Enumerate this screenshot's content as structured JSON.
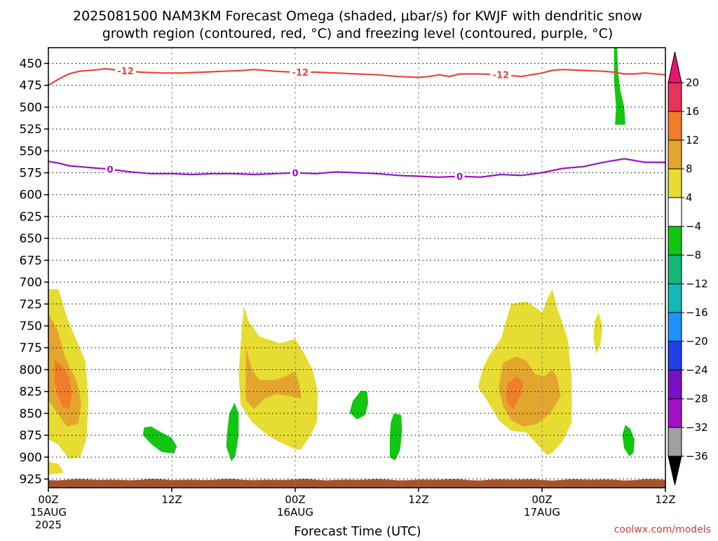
{
  "chart_data": {
    "type": "contour",
    "title_line1": "2025081500 NAM3KM Forecast Omega (shaded, μbar/s) for KWJF with dendritic snow",
    "title_line2": "growth region (contoured, red, °C) and freezing level (contoured, purple, °C)",
    "xlabel": "Forecast Time (UTC)",
    "credit": "coolwx.com/models",
    "x_ticks": [
      {
        "hour": 0,
        "label": "00Z",
        "sub1": "15AUG",
        "sub2": "2025"
      },
      {
        "hour": 12,
        "label": "12Z",
        "sub1": "",
        "sub2": ""
      },
      {
        "hour": 24,
        "label": "00Z",
        "sub1": "16AUG",
        "sub2": ""
      },
      {
        "hour": 36,
        "label": "12Z",
        "sub1": "",
        "sub2": ""
      },
      {
        "hour": 48,
        "label": "00Z",
        "sub1": "17AUG",
        "sub2": ""
      },
      {
        "hour": 60,
        "label": "12Z",
        "sub1": "",
        "sub2": ""
      }
    ],
    "xlim_hours": [
      0,
      60
    ],
    "y_axis": "pressure (hPa)",
    "y_ticks": [
      450,
      475,
      500,
      525,
      550,
      575,
      600,
      625,
      650,
      675,
      700,
      725,
      750,
      775,
      800,
      825,
      850,
      875,
      900,
      925
    ],
    "ylim_hpa": [
      432,
      935
    ],
    "grid": true,
    "colorbar": {
      "labels": [
        "20",
        "16",
        "12",
        "8",
        "4",
        "−4",
        "−8",
        "−12",
        "−16",
        "−20",
        "−24",
        "−28",
        "−32",
        "−36"
      ],
      "colors": [
        "#e8325a",
        "#f07d2a",
        "#e3a52e",
        "#e6dc32",
        "#ffffff",
        "#11c711",
        "#14b878",
        "#13b8b8",
        "#1e90ff",
        "#2040e8",
        "#7a10c8",
        "#a010c8",
        "#a0a0a0"
      ],
      "top_cap": "#e8146e",
      "bottom_cap": "#000000"
    },
    "contours": [
      {
        "name": "dendritic snow growth region",
        "value_label": "-12",
        "color": "#e8463c",
        "points": [
          [
            0,
            475
          ],
          [
            1,
            468
          ],
          [
            2,
            462
          ],
          [
            3,
            459
          ],
          [
            5,
            457
          ],
          [
            5.5,
            456
          ],
          [
            7,
            458
          ],
          [
            9,
            460
          ],
          [
            11,
            461
          ],
          [
            13,
            461
          ],
          [
            15,
            460
          ],
          [
            17,
            459
          ],
          [
            19,
            458
          ],
          [
            20,
            457
          ],
          [
            22,
            459
          ],
          [
            24,
            460
          ],
          [
            26,
            460
          ],
          [
            28,
            461
          ],
          [
            30,
            462
          ],
          [
            32,
            463
          ],
          [
            34,
            465
          ],
          [
            36,
            466
          ],
          [
            37,
            465
          ],
          [
            38,
            463
          ],
          [
            39,
            465
          ],
          [
            40,
            462
          ],
          [
            42,
            462
          ],
          [
            44,
            463
          ],
          [
            46,
            465
          ],
          [
            48,
            461
          ],
          [
            49,
            458
          ],
          [
            50,
            457
          ],
          [
            52,
            458
          ],
          [
            54,
            459
          ],
          [
            55,
            460
          ],
          [
            56,
            462
          ],
          [
            57,
            462
          ],
          [
            58,
            461
          ],
          [
            60,
            463
          ]
        ],
        "label_hours": [
          7.5,
          24.5,
          44
        ]
      },
      {
        "name": "freezing level",
        "value_label": "0",
        "color": "#9a10c8",
        "points": [
          [
            0,
            562
          ],
          [
            1,
            564
          ],
          [
            2,
            567
          ],
          [
            3,
            568
          ],
          [
            5,
            570
          ],
          [
            6,
            571
          ],
          [
            8,
            574
          ],
          [
            10,
            576
          ],
          [
            12,
            576
          ],
          [
            14,
            577
          ],
          [
            16,
            576
          ],
          [
            18,
            576
          ],
          [
            20,
            577
          ],
          [
            22,
            576
          ],
          [
            24,
            575
          ],
          [
            26,
            576
          ],
          [
            28,
            574
          ],
          [
            30,
            575
          ],
          [
            32,
            576
          ],
          [
            34,
            578
          ],
          [
            36,
            579
          ],
          [
            38,
            580
          ],
          [
            40,
            579
          ],
          [
            42,
            580
          ],
          [
            44,
            577
          ],
          [
            46,
            578
          ],
          [
            48,
            575
          ],
          [
            50,
            570
          ],
          [
            52,
            568
          ],
          [
            54,
            563
          ],
          [
            55,
            561
          ],
          [
            56,
            559
          ],
          [
            57,
            561
          ],
          [
            58,
            563
          ],
          [
            60,
            563
          ]
        ],
        "label_hours": [
          6,
          24,
          40
        ]
      }
    ],
    "omega_regions": [
      {
        "value": "4 to 8",
        "color": "#e6dc32",
        "points": [
          [
            0,
            708
          ],
          [
            1,
            708
          ],
          [
            1.8,
            740
          ],
          [
            2.5,
            760
          ],
          [
            3.6,
            790
          ],
          [
            3.9,
            835
          ],
          [
            3.7,
            880
          ],
          [
            3.1,
            900
          ],
          [
            2,
            902
          ],
          [
            0.9,
            885
          ],
          [
            0,
            880
          ]
        ]
      },
      {
        "value": "4 to 8",
        "color": "#e6dc32",
        "points": [
          [
            0,
            905
          ],
          [
            1,
            908
          ],
          [
            1.5,
            918
          ],
          [
            0,
            920
          ]
        ]
      },
      {
        "value": "8 to 12",
        "color": "#e3a52e",
        "points": [
          [
            0,
            736
          ],
          [
            0.9,
            755
          ],
          [
            1.6,
            785
          ],
          [
            2.8,
            815
          ],
          [
            3.2,
            838
          ],
          [
            2.9,
            862
          ],
          [
            1.8,
            865
          ],
          [
            0.9,
            850
          ],
          [
            0,
            835
          ]
        ]
      },
      {
        "value": "12 to 16",
        "color": "#f07d2a",
        "points": [
          [
            0.6,
            790
          ],
          [
            1.3,
            795
          ],
          [
            2,
            808
          ],
          [
            2.3,
            828
          ],
          [
            2,
            845
          ],
          [
            1.4,
            843
          ],
          [
            0.9,
            830
          ],
          [
            0.6,
            812
          ]
        ]
      },
      {
        "value": "4 to 8",
        "color": "#e6dc32",
        "points": [
          [
            19,
            727
          ],
          [
            19.5,
            745
          ],
          [
            20.5,
            762
          ],
          [
            22.5,
            770
          ],
          [
            24,
            765
          ],
          [
            24.8,
            780
          ],
          [
            25.7,
            800
          ],
          [
            26.2,
            825
          ],
          [
            26.1,
            860
          ],
          [
            25.5,
            875
          ],
          [
            24.5,
            892
          ],
          [
            23.8,
            890
          ],
          [
            22,
            880
          ],
          [
            21,
            872
          ],
          [
            19.8,
            860
          ],
          [
            18.7,
            840
          ],
          [
            18.5,
            805
          ],
          [
            18.7,
            770
          ]
        ]
      },
      {
        "value": "8 to 12",
        "color": "#e3a52e",
        "points": [
          [
            19.2,
            775
          ],
          [
            19.8,
            800
          ],
          [
            20.5,
            812
          ],
          [
            22,
            812
          ],
          [
            23,
            808
          ],
          [
            24,
            802
          ],
          [
            24.4,
            818
          ],
          [
            24.6,
            833
          ],
          [
            23.4,
            830
          ],
          [
            22.2,
            828
          ],
          [
            21,
            833
          ],
          [
            20,
            845
          ],
          [
            19.2,
            835
          ]
        ]
      },
      {
        "value": "4 to 8",
        "color": "#e6dc32",
        "points": [
          [
            44,
            765
          ],
          [
            45,
            725
          ],
          [
            46.5,
            722
          ],
          [
            47.5,
            730
          ],
          [
            48,
            735
          ],
          [
            48.5,
            720
          ],
          [
            49,
            708
          ],
          [
            49.5,
            730
          ],
          [
            50.5,
            765
          ],
          [
            50.9,
            810
          ],
          [
            50.9,
            860
          ],
          [
            50,
            882
          ],
          [
            49,
            895
          ],
          [
            48.5,
            898
          ],
          [
            47.5,
            885
          ],
          [
            46.5,
            872
          ],
          [
            45,
            870
          ],
          [
            43.8,
            858
          ],
          [
            42.8,
            838
          ],
          [
            41.8,
            820
          ],
          [
            42.2,
            800
          ],
          [
            42.8,
            785
          ]
        ]
      },
      {
        "value": "8 to 12",
        "color": "#e3a52e",
        "points": [
          [
            44.2,
            792
          ],
          [
            45.5,
            785
          ],
          [
            46.5,
            790
          ],
          [
            47.3,
            805
          ],
          [
            48.2,
            808
          ],
          [
            49,
            800
          ],
          [
            49.5,
            810
          ],
          [
            49.8,
            830
          ],
          [
            48.8,
            850
          ],
          [
            47.5,
            862
          ],
          [
            46.2,
            865
          ],
          [
            45,
            858
          ],
          [
            44.2,
            842
          ],
          [
            43.8,
            820
          ]
        ]
      },
      {
        "value": "12 to 16",
        "color": "#f07d2a",
        "points": [
          [
            44.7,
            815
          ],
          [
            45.6,
            808
          ],
          [
            46.2,
            815
          ],
          [
            45.9,
            830
          ],
          [
            45.2,
            845
          ],
          [
            44.6,
            838
          ],
          [
            44.5,
            825
          ]
        ]
      },
      {
        "value": "4 to 8",
        "color": "#e6dc32",
        "points": [
          [
            53.5,
            735
          ],
          [
            53.9,
            750
          ],
          [
            53.7,
            770
          ],
          [
            53.3,
            782
          ],
          [
            53,
            765
          ],
          [
            53.1,
            745
          ]
        ]
      },
      {
        "value": "-4 to -8",
        "color": "#11c711",
        "points": [
          [
            9.3,
            866
          ],
          [
            10,
            865
          ],
          [
            11,
            872
          ],
          [
            12,
            878
          ],
          [
            12.5,
            888
          ],
          [
            12.2,
            896
          ],
          [
            11,
            894
          ],
          [
            10,
            885
          ],
          [
            9.2,
            875
          ]
        ]
      },
      {
        "value": "-4 to -8",
        "color": "#11c711",
        "points": [
          [
            18.1,
            838
          ],
          [
            18.5,
            850
          ],
          [
            18.5,
            875
          ],
          [
            18.2,
            898
          ],
          [
            17.8,
            905
          ],
          [
            17.3,
            888
          ],
          [
            17.4,
            870
          ],
          [
            17.6,
            850
          ]
        ]
      },
      {
        "value": "-4 to -8",
        "color": "#11c711",
        "points": [
          [
            30.4,
            824
          ],
          [
            31,
            825
          ],
          [
            31.1,
            838
          ],
          [
            30.8,
            852
          ],
          [
            30,
            857
          ],
          [
            29.3,
            849
          ],
          [
            29.6,
            836
          ]
        ]
      },
      {
        "value": "-4 to -8",
        "color": "#11c711",
        "points": [
          [
            33.6,
            850
          ],
          [
            34.3,
            852
          ],
          [
            34.4,
            870
          ],
          [
            34.2,
            892
          ],
          [
            33.7,
            904
          ],
          [
            33.2,
            900
          ],
          [
            33.2,
            878
          ],
          [
            33.3,
            860
          ]
        ]
      },
      {
        "value": "-4 to -8",
        "color": "#11c711",
        "points": [
          [
            56.1,
            863
          ],
          [
            56.6,
            868
          ],
          [
            57,
            880
          ],
          [
            56.9,
            895
          ],
          [
            56.5,
            899
          ],
          [
            56,
            890
          ],
          [
            55.8,
            875
          ]
        ]
      },
      {
        "value": "-4 to -8",
        "color": "#11c711",
        "points": [
          [
            55,
            430
          ],
          [
            55.3,
            430
          ],
          [
            55.4,
            460
          ],
          [
            55.6,
            480
          ],
          [
            56,
            500
          ],
          [
            56.1,
            520
          ],
          [
            55.1,
            520
          ],
          [
            55.2,
            500
          ],
          [
            55,
            470
          ]
        ]
      }
    ],
    "terrain": {
      "color": "#a6532c",
      "top_hpa": 925,
      "bottom_hpa": 935
    }
  }
}
